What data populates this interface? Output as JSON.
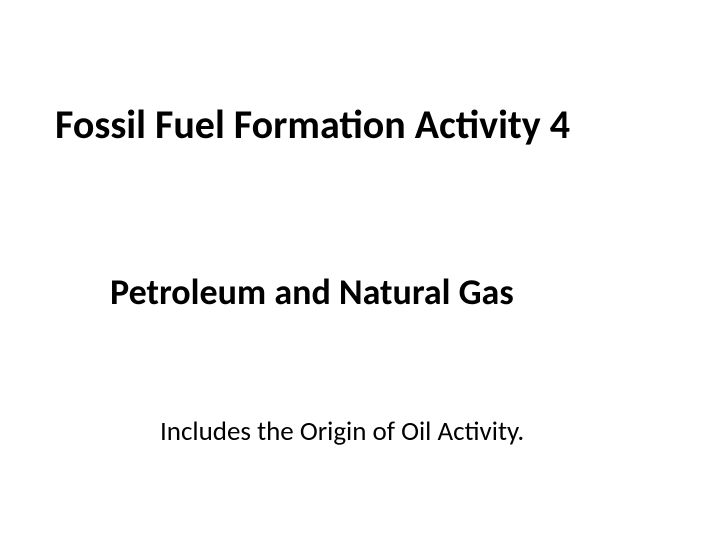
{
  "slide": {
    "title": "Fossil Fuel Formation Activity 4",
    "subtitle": "Petroleum and Natural Gas",
    "footnote": "Includes the Origin of Oil Activity.",
    "background_color": "#ffffff",
    "text_color": "#000000",
    "title_fontsize": 40,
    "title_fontweight": "bold",
    "subtitle_fontsize": 36,
    "subtitle_fontweight": "bold",
    "footnote_fontsize": 27,
    "footnote_fontweight": "normal",
    "font_family": "Calibri"
  }
}
